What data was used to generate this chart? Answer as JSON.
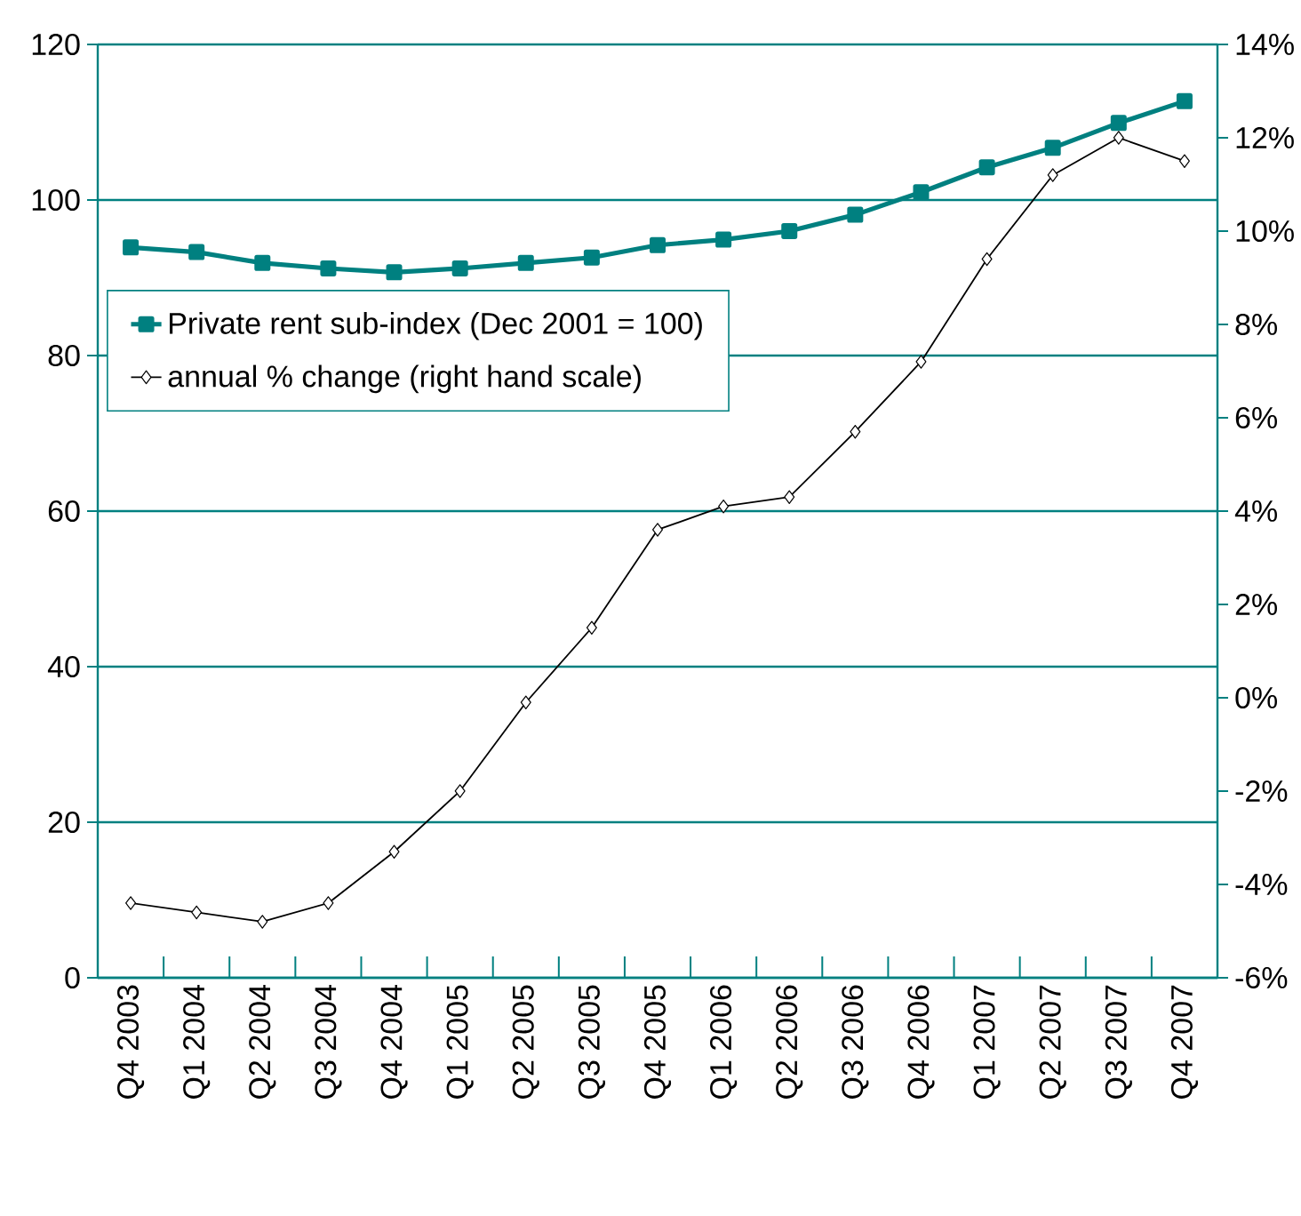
{
  "chart_data": {
    "type": "line",
    "categories": [
      "Q4 2003",
      "Q1 2004",
      "Q2 2004",
      "Q3 2004",
      "Q4 2004",
      "Q1 2005",
      "Q2 2005",
      "Q3 2005",
      "Q4 2005",
      "Q1 2006",
      "Q2 2006",
      "Q3 2006",
      "Q4 2006",
      "Q1 2007",
      "Q2 2007",
      "Q3 2007",
      "Q4 2007"
    ],
    "series": [
      {
        "name": "Private rent sub-index (Dec 2001 = 100)",
        "color": "#008080",
        "marker": "square",
        "values": [
          93.9,
          93.3,
          91.9,
          91.2,
          90.7,
          91.2,
          91.9,
          92.6,
          94.2,
          94.9,
          96.0,
          98.1,
          101.0,
          104.2,
          106.7,
          109.9,
          112.7
        ]
      },
      {
        "name": "annual % change (right hand scale)",
        "color": "#000000",
        "marker": "diamond",
        "axis": "y2",
        "values": [
          -4.4,
          -4.6,
          -4.8,
          -4.4,
          -3.3,
          -2.0,
          -0.1,
          1.5,
          3.6,
          4.1,
          4.3,
          5.7,
          7.2,
          9.4,
          11.2,
          12.0,
          11.5
        ]
      }
    ],
    "ylim": [
      0,
      120
    ],
    "yticks": [
      0,
      20,
      40,
      60,
      80,
      100,
      120
    ],
    "y2lim": [
      -6,
      14
    ],
    "y2ticks": [
      {
        "value": -6,
        "label": "-6%"
      },
      {
        "value": -4,
        "label": "-4%"
      },
      {
        "value": -2,
        "label": "-2%"
      },
      {
        "value": 0,
        "label": "0%"
      },
      {
        "value": 2,
        "label": "2%"
      },
      {
        "value": 4,
        "label": "4%"
      },
      {
        "value": 6,
        "label": "6%"
      },
      {
        "value": 8,
        "label": "8%"
      },
      {
        "value": 10,
        "label": "10%"
      },
      {
        "value": 12,
        "label": "12%"
      },
      {
        "value": 14,
        "label": "14%"
      }
    ],
    "grid": "y",
    "legend": "top left"
  }
}
